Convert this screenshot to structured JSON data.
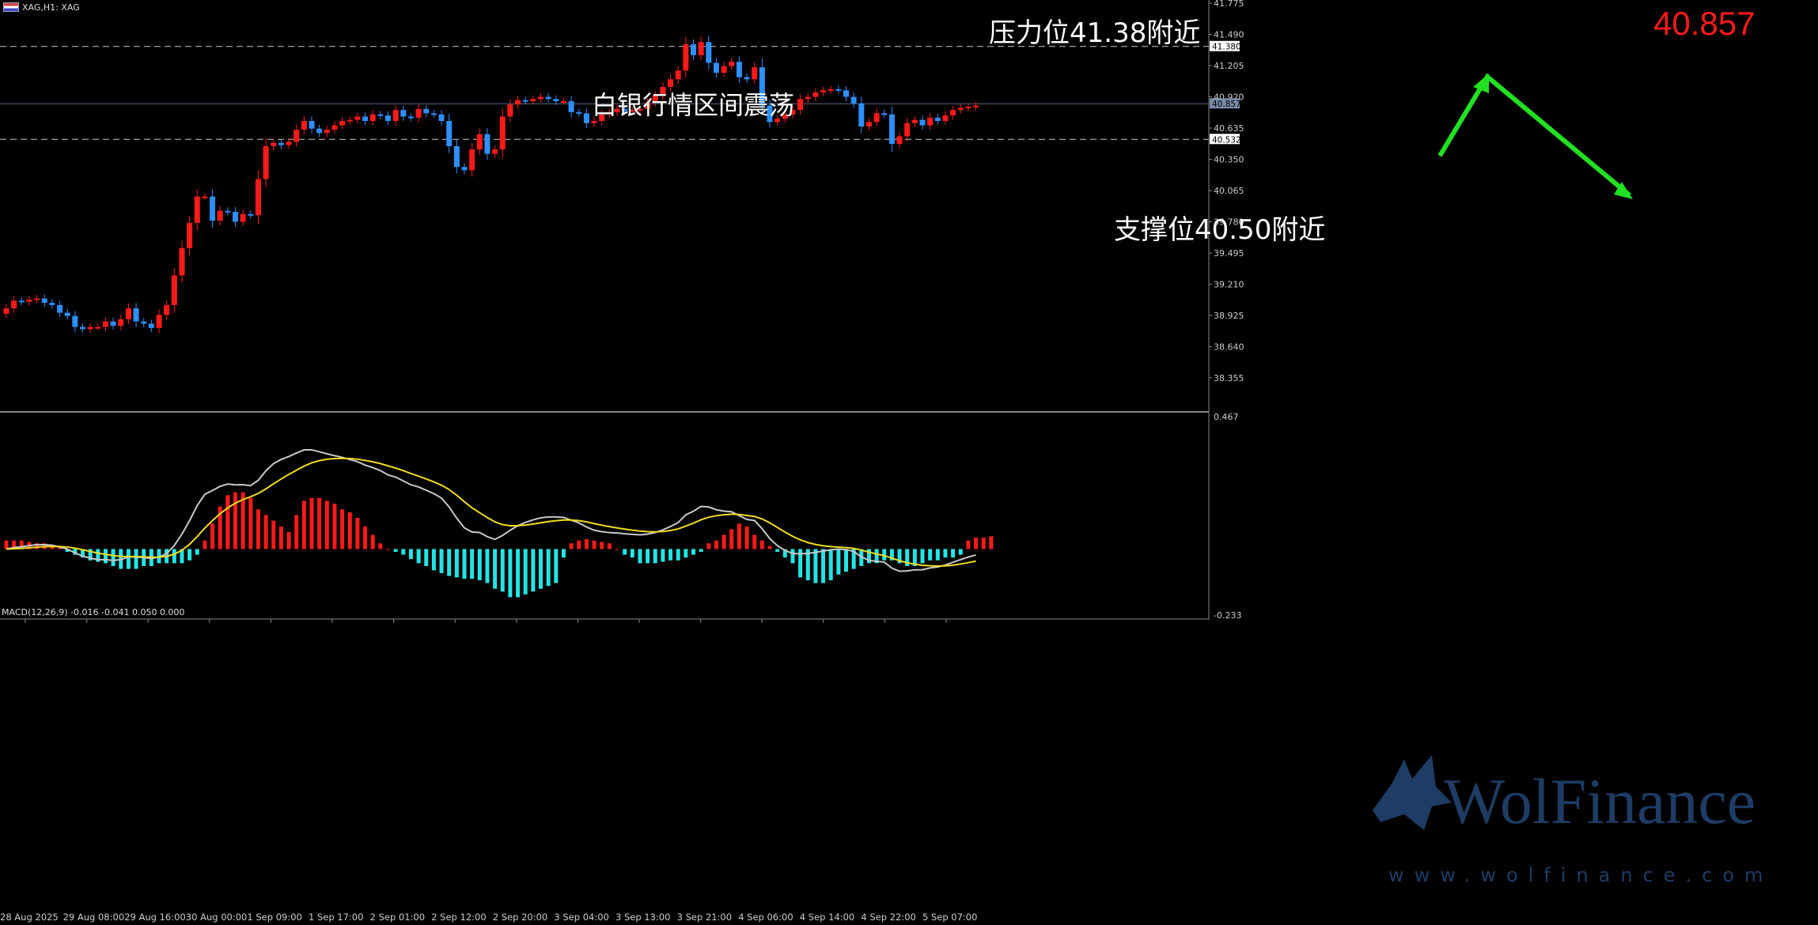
{
  "window": {
    "title": "XAG,H1: XAG"
  },
  "price_readout": "40.857",
  "annotations": {
    "headline": "白银行情区间震荡",
    "resistance": "压力位41.38附近",
    "support": "支撑位40.50附近"
  },
  "watermark": {
    "brand": "WolFinance",
    "url": "www.wolfinance.com",
    "logo": "wolf-head-icon"
  },
  "colors": {
    "background": "#000000",
    "bull_candle": "#ff1a1a",
    "bear_candle": "#2e8fff",
    "hist_positive": "#ff1a1a",
    "hist_negative": "#22e5e5",
    "macd_line": "#c8c8c8",
    "signal_line": "#f0dc1e",
    "arrow": "#22e022",
    "price_readout": "#ff1a1a",
    "watermark": "#1e3c64"
  },
  "chart_data": [
    {
      "type": "candlestick",
      "symbol": "XAG",
      "timeframe": "H1",
      "y_ticks": [
        "41.775",
        "41.490",
        "41.205",
        "40.920",
        "40.635",
        "40.350",
        "40.065",
        "39.780",
        "39.495",
        "39.210",
        "38.925",
        "38.640",
        "38.355"
      ],
      "ylim": [
        38.1,
        41.8
      ],
      "x_ticks": [
        "28 Aug 2025",
        "29 Aug 08:00",
        "29 Aug 16:00",
        "30 Aug 00:00",
        "1 Sep 09:00",
        "1 Sep 17:00",
        "2 Sep 01:00",
        "2 Sep 12:00",
        "2 Sep 20:00",
        "3 Sep 04:00",
        "3 Sep 13:00",
        "3 Sep 21:00",
        "4 Sep 06:00",
        "4 Sep 14:00",
        "4 Sep 22:00",
        "5 Sep 07:00"
      ],
      "levels": [
        {
          "name": "resistance",
          "value": 41.38,
          "tag": "41.380",
          "style": "dashed"
        },
        {
          "name": "current",
          "value": 40.857,
          "tag": "40.857",
          "style": "solid"
        },
        {
          "name": "support",
          "value": 40.532,
          "tag": "40.532",
          "style": "dashed"
        }
      ],
      "closes": [
        38.99,
        39.06,
        39.05,
        39.07,
        39.08,
        39.04,
        39.02,
        38.95,
        38.92,
        38.82,
        38.8,
        38.82,
        38.82,
        38.87,
        38.83,
        38.89,
        38.99,
        38.87,
        38.85,
        38.81,
        38.93,
        39.02,
        39.29,
        39.54,
        39.77,
        40.01,
        40.01,
        39.79,
        39.88,
        39.87,
        39.78,
        39.85,
        39.84,
        40.17,
        40.47,
        40.5,
        40.48,
        40.51,
        40.62,
        40.7,
        40.63,
        40.59,
        40.62,
        40.66,
        40.7,
        40.71,
        40.74,
        40.7,
        40.76,
        40.75,
        40.7,
        40.8,
        40.74,
        40.73,
        40.81,
        40.77,
        40.76,
        40.7,
        40.47,
        40.28,
        40.25,
        40.44,
        40.58,
        40.4,
        40.44,
        40.74,
        40.85,
        40.89,
        40.88,
        40.9,
        40.92,
        40.9,
        40.88,
        40.88,
        40.78,
        40.77,
        40.68,
        40.7,
        40.76,
        40.78,
        40.81,
        40.79,
        40.8,
        40.81,
        40.87,
        40.93,
        41.01,
        41.08,
        41.16,
        41.4,
        41.3,
        41.42,
        41.23,
        41.14,
        41.2,
        41.24,
        41.1,
        41.08,
        41.19,
        40.84,
        40.69,
        40.72,
        40.76,
        40.8,
        40.9,
        40.92,
        40.96,
        40.98,
        40.99,
        40.98,
        40.92,
        40.86,
        40.65,
        40.69,
        40.77,
        40.76,
        40.49,
        40.56,
        40.68,
        40.71,
        40.66,
        40.73,
        40.7,
        40.75,
        40.8,
        40.82,
        40.83,
        40.84
      ]
    },
    {
      "type": "macd",
      "label": "MACD(12,26,9) -0.016 -0.041 0.050 0.000",
      "y_ticks": [
        "0.467",
        "-0.233"
      ],
      "ylim": [
        -0.233,
        0.467
      ],
      "series": [
        {
          "kind": "histogram"
        },
        {
          "kind": "line",
          "color_key": "macd_line"
        },
        {
          "kind": "line",
          "color_key": "signal_line"
        }
      ],
      "histogram": [
        0.03,
        0.03,
        0.03,
        0.025,
        0.02,
        0.02,
        0.015,
        0.01,
        -0.01,
        -0.02,
        -0.03,
        -0.04,
        -0.045,
        -0.05,
        -0.06,
        -0.07,
        -0.07,
        -0.07,
        -0.06,
        -0.06,
        -0.05,
        -0.05,
        -0.05,
        -0.05,
        -0.04,
        -0.02,
        0.03,
        0.09,
        0.15,
        0.19,
        0.2,
        0.2,
        0.18,
        0.14,
        0.12,
        0.1,
        0.08,
        0.06,
        0.12,
        0.17,
        0.18,
        0.18,
        0.17,
        0.16,
        0.14,
        0.13,
        0.11,
        0.08,
        0.05,
        0.02,
        0,
        -0.01,
        -0.02,
        -0.035,
        -0.05,
        -0.06,
        -0.075,
        -0.085,
        -0.095,
        -0.1,
        -0.105,
        -0.105,
        -0.11,
        -0.12,
        -0.14,
        -0.15,
        -0.17,
        -0.17,
        -0.16,
        -0.15,
        -0.14,
        -0.13,
        -0.12,
        -0.03,
        0.02,
        0.03,
        0.035,
        0.03,
        0.025,
        0.02,
        0,
        -0.02,
        -0.03,
        -0.05,
        -0.05,
        -0.05,
        -0.045,
        -0.04,
        -0.04,
        -0.03,
        -0.02,
        -0.01,
        0.02,
        0.03,
        0.05,
        0.07,
        0.09,
        0.08,
        0.05,
        0.03,
        0.01,
        -0.01,
        -0.03,
        -0.05,
        -0.1,
        -0.11,
        -0.12,
        -0.12,
        -0.11,
        -0.09,
        -0.08,
        -0.07,
        -0.06,
        -0.05,
        -0.05,
        -0.04,
        -0.04,
        -0.05,
        -0.06,
        -0.06,
        -0.05,
        -0.04,
        -0.04,
        -0.03,
        -0.03,
        -0.02,
        0.03,
        0.04,
        0.04,
        0.045
      ]
    }
  ]
}
